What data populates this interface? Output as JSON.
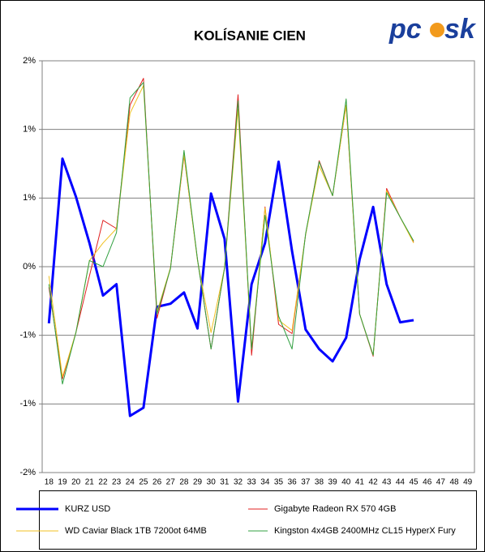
{
  "chart_data": {
    "type": "line",
    "title": "KOLÍSANIE CIEN",
    "logo": [
      "pc",
      "sk"
    ],
    "categories": [
      "18",
      "19",
      "20",
      "21",
      "22",
      "23",
      "24",
      "25",
      "26",
      "27",
      "28",
      "29",
      "30",
      "31",
      "32",
      "33",
      "34",
      "35",
      "36",
      "37",
      "38",
      "39",
      "40",
      "41",
      "42",
      "43",
      "44",
      "45",
      "46",
      "47",
      "48",
      "49"
    ],
    "ylim": [
      -2,
      2
    ],
    "yticks": [
      {
        "value": -2,
        "label": "-2%"
      },
      {
        "value": -1.3333,
        "label": "-1%"
      },
      {
        "value": -0.6667,
        "label": "-1%"
      },
      {
        "value": 0,
        "label": "0%"
      },
      {
        "value": 0.6667,
        "label": "1%"
      },
      {
        "value": 1.3333,
        "label": "1%"
      },
      {
        "value": 2,
        "label": "2%"
      }
    ],
    "grid": true,
    "series": [
      {
        "name": "KURZ USD",
        "color": "#0000ff",
        "width": 3,
        "values": [
          -0.55,
          1.05,
          0.68,
          0.23,
          -0.28,
          -0.17,
          -1.45,
          -1.37,
          -0.39,
          -0.36,
          -0.25,
          -0.6,
          0.71,
          0.27,
          -1.31,
          -0.17,
          0.23,
          1.02,
          0.15,
          -0.61,
          -0.8,
          -0.92,
          -0.69,
          0.07,
          0.58,
          -0.17,
          -0.54,
          -0.52,
          null,
          null,
          null,
          null
        ]
      },
      {
        "name": "Gigabyte Radeon RX 570 4GB",
        "color": "#e02020",
        "width": 1,
        "values": [
          -0.2,
          -1.09,
          -0.64,
          -0.09,
          0.45,
          0.37,
          1.57,
          1.83,
          -0.5,
          -0.01,
          1.08,
          0.07,
          -0.8,
          -0.01,
          1.67,
          -0.86,
          0.58,
          -0.56,
          -0.65,
          0.31,
          1.03,
          0.69,
          1.57,
          -0.46,
          -0.87,
          0.76,
          0.48,
          0.24,
          null,
          null,
          null,
          null
        ]
      },
      {
        "name": "WD Caviar Black 1TB 7200ot 64MB",
        "color": "#f0c020",
        "width": 1,
        "values": [
          -0.09,
          -1.07,
          -0.64,
          0.06,
          0.23,
          0.37,
          1.49,
          1.76,
          -0.44,
          -0.01,
          1.09,
          0.06,
          -0.64,
          -0.01,
          1.53,
          -0.8,
          0.57,
          -0.52,
          -0.62,
          0.31,
          0.98,
          0.69,
          1.57,
          -0.46,
          -0.86,
          0.74,
          0.48,
          0.23,
          null,
          null,
          null,
          null
        ]
      },
      {
        "name": "Kingston 4x4GB 2400MHz CL15 HyperX Fury",
        "color": "#30a040",
        "width": 1,
        "values": [
          -0.17,
          -1.14,
          -0.64,
          0.06,
          0,
          0.33,
          1.64,
          1.79,
          -0.46,
          -0.02,
          1.13,
          0.07,
          -0.8,
          -0.01,
          1.61,
          -0.8,
          0.5,
          -0.48,
          -0.8,
          0.32,
          1.02,
          0.69,
          1.63,
          -0.46,
          -0.86,
          0.72,
          0.48,
          0.25,
          null,
          null,
          null,
          null
        ]
      }
    ]
  }
}
